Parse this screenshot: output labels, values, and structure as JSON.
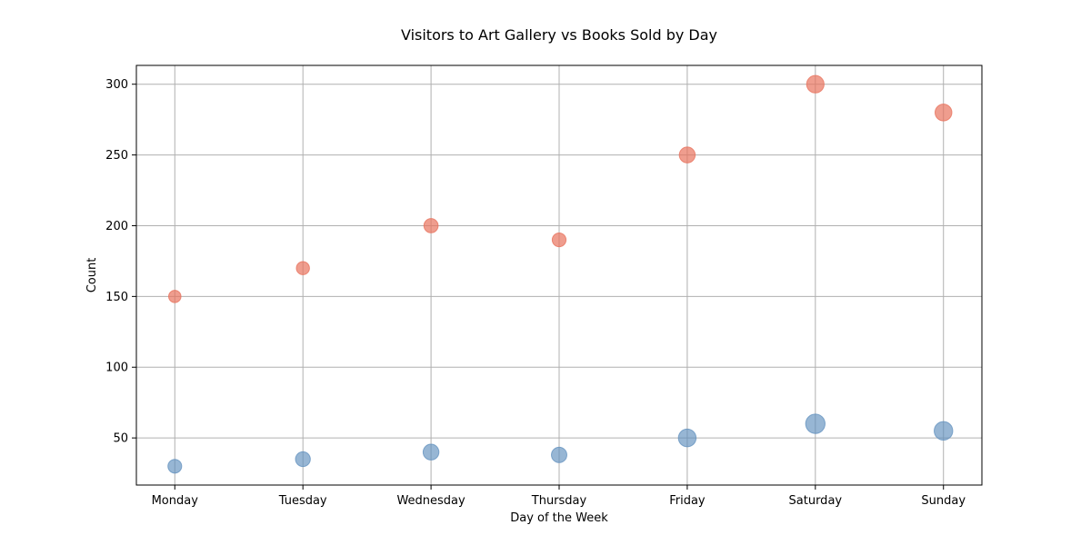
{
  "chart_data": {
    "type": "scatter",
    "title": "Visitors to Art Gallery vs Books Sold by Day",
    "xlabel": "Day of the Week",
    "ylabel": "Count",
    "categories": [
      "Monday",
      "Tuesday",
      "Wednesday",
      "Thursday",
      "Friday",
      "Saturday",
      "Sunday"
    ],
    "ylim": [
      16.7,
      313.3
    ],
    "yticks": [
      50,
      100,
      150,
      200,
      250,
      300
    ],
    "grid": true,
    "series": [
      {
        "values": [
          150,
          170,
          200,
          190,
          250,
          300,
          280
        ],
        "color": "#e8735e",
        "opacity": 0.7
      },
      {
        "values": [
          30,
          35,
          40,
          38,
          50,
          60,
          55
        ],
        "color": "#5f8fbd",
        "opacity": 0.65
      }
    ]
  }
}
